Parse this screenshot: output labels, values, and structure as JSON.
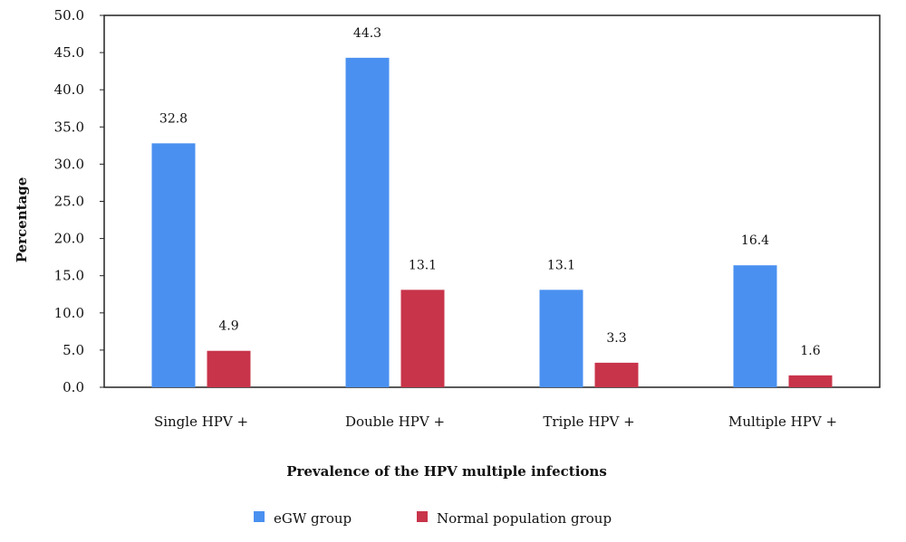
{
  "chart_data": {
    "type": "bar",
    "xlabel": "Prevalence of the HPV multiple infections",
    "ylabel": "Percentage",
    "ylim": [
      0,
      50
    ],
    "yticks": [
      "0.0",
      "5.0",
      "10.0",
      "15.0",
      "20.0",
      "25.0",
      "30.0",
      "35.0",
      "40.0",
      "45.0",
      "50.0"
    ],
    "categories": [
      "Single HPV +",
      "Double HPV +",
      "Triple HPV +",
      "Multiple HPV +"
    ],
    "series": [
      {
        "name": "eGW group",
        "color": "#4a90f0",
        "values": [
          32.8,
          44.3,
          13.1,
          16.4
        ],
        "labels": [
          "32.8",
          "44.3",
          "13.1",
          "16.4"
        ]
      },
      {
        "name": "Normal population group",
        "color": "#c8344a",
        "values": [
          4.9,
          13.1,
          3.3,
          1.6
        ],
        "labels": [
          "4.9",
          "13.1",
          "3.3",
          "1.6"
        ]
      }
    ],
    "legend_position": "bottom",
    "grid": false
  }
}
